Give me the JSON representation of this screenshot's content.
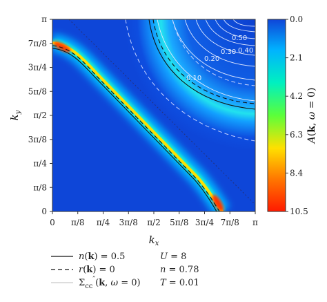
{
  "chart_data": {
    "type": "heatmap",
    "xlabel": "k_x",
    "ylabel": "k_y",
    "xlim": [
      0,
      3.14159
    ],
    "ylim": [
      0,
      3.14159
    ],
    "x_ticks": [
      "0",
      "π/8",
      "π/4",
      "3π/8",
      "π/2",
      "5π/8",
      "3π/4",
      "7π/8",
      "π"
    ],
    "y_ticks": [
      "0",
      "π/8",
      "π/4",
      "3π/8",
      "π/2",
      "5π/8",
      "3π/4",
      "7π/8",
      "π"
    ],
    "colorbar": {
      "label": "A(k, ω = 0)",
      "range": [
        0.0,
        10.5
      ],
      "ticks": [
        "0.0",
        "2.1",
        "4.2",
        "6.3",
        "8.4",
        "10.5"
      ],
      "colors": [
        "#0f45d8",
        "#00b3ff",
        "#00f0c0",
        "#5bff3a",
        "#ffe000",
        "#ff7800",
        "#ff1a00"
      ]
    },
    "contour_labels": [
      "0.10",
      "0.20",
      "0.30",
      "0.40",
      "0.50"
    ],
    "legend": {
      "lines": [
        {
          "style": "solid",
          "label": "n(k) = 0.5"
        },
        {
          "style": "dashed",
          "label": "r(k) = 0"
        },
        {
          "style": "thin",
          "label": "Σ″cc(k, ω = 0)"
        }
      ],
      "params": [
        "U = 8",
        "n = 0.78",
        "T = 0.01"
      ]
    }
  }
}
